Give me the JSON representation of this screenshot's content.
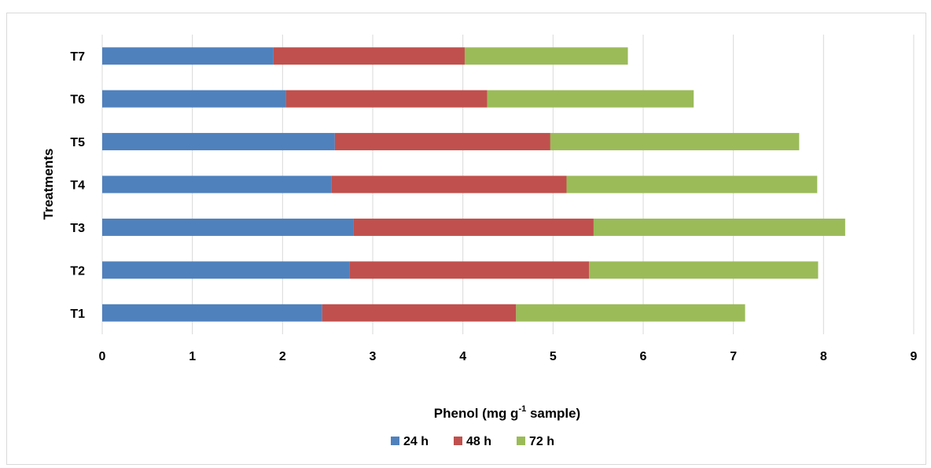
{
  "chart_data": {
    "type": "bar",
    "orientation": "horizontal",
    "stacked": true,
    "categories": [
      "T1",
      "T2",
      "T3",
      "T4",
      "T5",
      "T6",
      "T7"
    ],
    "series": [
      {
        "name": "24 h",
        "color": "#4f81bd",
        "values": [
          2.44,
          2.74,
          2.79,
          2.54,
          2.58,
          2.04,
          1.9
        ]
      },
      {
        "name": "48 h",
        "color": "#c0504d",
        "values": [
          2.15,
          2.66,
          2.66,
          2.61,
          2.39,
          2.23,
          2.12
        ]
      },
      {
        "name": "72 h",
        "color": "#9bbb59",
        "values": [
          2.54,
          2.54,
          2.79,
          2.78,
          2.76,
          2.29,
          1.81
        ]
      }
    ],
    "xlim": [
      0,
      9
    ],
    "xticks": [
      "0",
      "1",
      "2",
      "3",
      "4",
      "5",
      "6",
      "7",
      "8",
      "9"
    ],
    "xlabel": {
      "main": "Phenol (mg g",
      "sup": "-1",
      "tail": " sample)"
    },
    "ylabel": "Treatments",
    "grid": "vertical",
    "legend_position": "bottom"
  }
}
